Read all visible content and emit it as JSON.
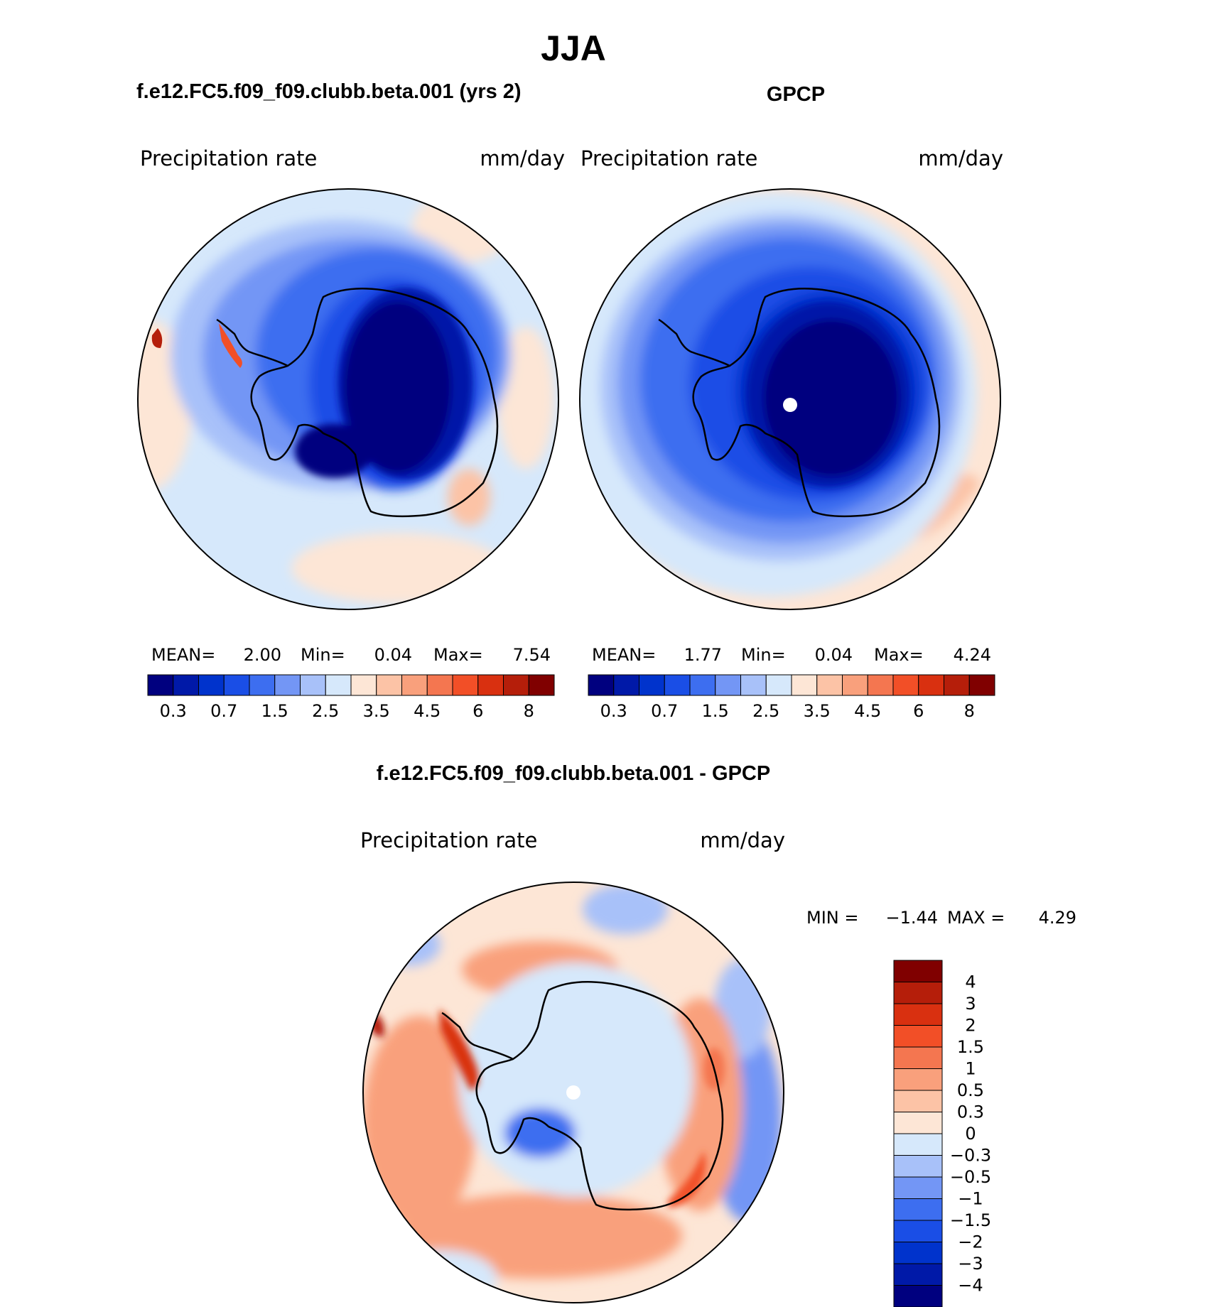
{
  "title": "JJA",
  "panels": {
    "model": {
      "case_title": "f.e12.FC5.f09_f09.clubb.beta.001 (yrs 2)",
      "variable": "Precipitation  rate",
      "units": "mm/day",
      "stats": {
        "mean_label": "MEAN=",
        "mean": "2.00",
        "min_label": "Min=",
        "min": "0.04",
        "max_label": "Max=",
        "max": "7.54"
      }
    },
    "obs": {
      "case_title": "GPCP",
      "variable": "Precipitation  rate",
      "units": "mm/day",
      "stats": {
        "mean_label": "MEAN=",
        "mean": "1.77",
        "min_label": "Min=",
        "min": "0.04",
        "max_label": "Max=",
        "max": "4.24"
      }
    },
    "diff": {
      "case_title": "f.e12.FC5.f09_f09.clubb.beta.001 - GPCP",
      "variable": "Precipitation  rate",
      "units": "mm/day",
      "stats": {
        "min_label": "MIN =",
        "min": "−1.44",
        "max_label": "MAX =",
        "max": "4.29"
      }
    }
  },
  "colorbar_abs": {
    "colors": [
      "#00007f",
      "#0019a8",
      "#0033cc",
      "#1a4ee6",
      "#3d6ef0",
      "#7396f5",
      "#a8c1f9",
      "#d6e8fb",
      "#fde6d6",
      "#fcc3a6",
      "#f9a07c",
      "#f47650",
      "#f24f27",
      "#d93010",
      "#b51e0a",
      "#800000"
    ],
    "labels": [
      "0.3",
      "0.7",
      "1.5",
      "2.5",
      "3.5",
      "4.5",
      "6",
      "8"
    ]
  },
  "colorbar_diff": {
    "colors": [
      "#00007f",
      "#0019a8",
      "#0033cc",
      "#1a4ee6",
      "#3d6ef0",
      "#7396f5",
      "#a8c1f9",
      "#d6e8fb",
      "#fde6d6",
      "#fcc3a6",
      "#f9a07c",
      "#f47650",
      "#f24f27",
      "#d93010",
      "#b51e0a",
      "#800000"
    ],
    "labels": [
      "−4",
      "−3",
      "−2",
      "−1.5",
      "−1",
      "−0.5",
      "−0.3",
      "0",
      "0.3",
      "0.5",
      "1",
      "1.5",
      "2",
      "3",
      "4"
    ]
  }
}
